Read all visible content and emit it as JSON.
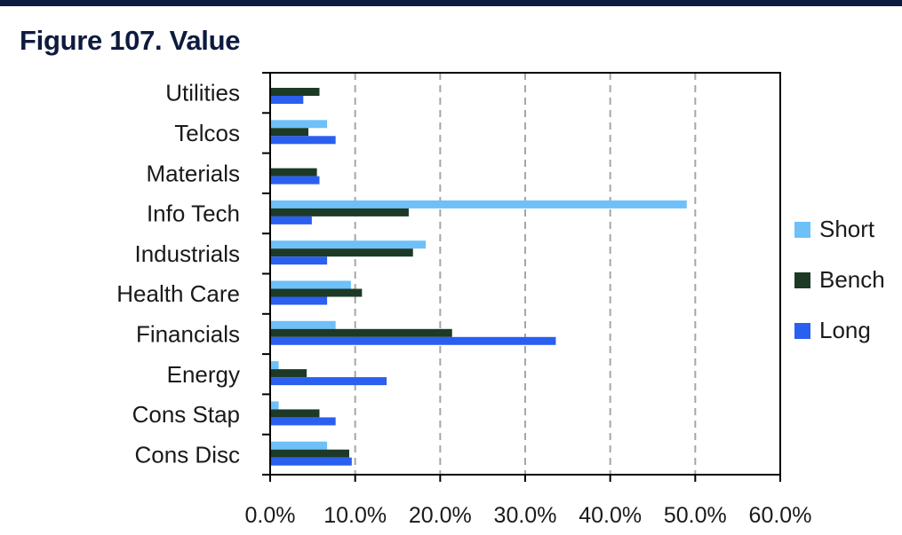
{
  "figure": {
    "title": "Figure 107. Value"
  },
  "colors": {
    "top_rule": "#0d1b3e",
    "title": "#0d1b3e",
    "text": "#1a1a1a",
    "axis": "#000000",
    "grid": "#a6a6a6"
  },
  "chart_data": {
    "type": "bar",
    "orientation": "horizontal",
    "title": "Figure 107. Value",
    "xlabel": "",
    "ylabel": "",
    "xlim": [
      0,
      0.6
    ],
    "x_ticks": [
      0,
      0.1,
      0.2,
      0.3,
      0.4,
      0.5,
      0.6
    ],
    "x_tick_labels": [
      "0.0%",
      "10.0%",
      "20.0%",
      "30.0%",
      "40.0%",
      "50.0%",
      "60.0%"
    ],
    "grid": "vertical-dashed",
    "legend_position": "right",
    "categories": [
      "Utilities",
      "Telcos",
      "Materials",
      "Info Tech",
      "Industrials",
      "Health Care",
      "Financials",
      "Energy",
      "Cons Stap",
      "Cons Disc"
    ],
    "series": [
      {
        "name": "Short",
        "color": "#6ec0f8",
        "values": [
          0,
          0.067,
          0,
          0.49,
          0.183,
          0.095,
          0.077,
          0.01,
          0.01,
          0.067
        ]
      },
      {
        "name": "Bench",
        "color": "#1c3a26",
        "values": [
          0.058,
          0.045,
          0.055,
          0.163,
          0.168,
          0.108,
          0.214,
          0.043,
          0.058,
          0.093
        ]
      },
      {
        "name": "Long",
        "color": "#2a5ff0",
        "values": [
          0.039,
          0.077,
          0.058,
          0.049,
          0.067,
          0.067,
          0.336,
          0.137,
          0.077,
          0.096
        ]
      }
    ]
  }
}
